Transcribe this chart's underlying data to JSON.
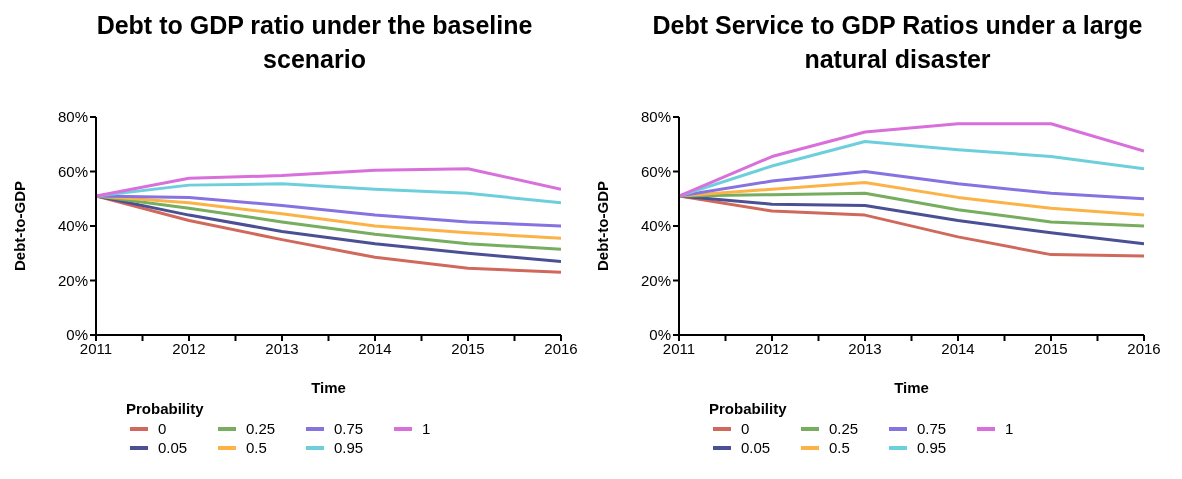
{
  "chart_data": [
    {
      "type": "line",
      "title": "Debt to GDP ratio under the baseline scenario",
      "xlabel": "Time",
      "ylabel": "Debt-to-GDP",
      "legend_title": "Probability",
      "legend": "bottom",
      "grid": false,
      "line_style": "solid",
      "x": [
        2011,
        2012,
        2013,
        2014,
        2015,
        2016
      ],
      "xlim": [
        2011,
        2016
      ],
      "xticks": [
        2011,
        {
          "value": 2011.5,
          "label": null
        },
        2012,
        {
          "value": 2012.5,
          "label": null
        },
        2013,
        {
          "value": 2013.5,
          "label": null
        },
        2014,
        {
          "value": 2014.5,
          "label": null
        },
        2015,
        {
          "value": 2015.5,
          "label": null
        },
        2016
      ],
      "ylim": [
        0,
        80
      ],
      "yticks": [
        {
          "value": 0,
          "label": "0%"
        },
        {
          "value": 20,
          "label": "20%"
        },
        {
          "value": 40,
          "label": "40%"
        },
        {
          "value": 60,
          "label": "60%"
        },
        {
          "value": 80,
          "label": "80%"
        }
      ],
      "series": [
        {
          "name": "0",
          "color": "#d0695c",
          "values": [
            51,
            42,
            35,
            28.5,
            24.5,
            23
          ]
        },
        {
          "name": "0.05",
          "color": "#4b4f93",
          "values": [
            51,
            44,
            38,
            33.5,
            30,
            27
          ]
        },
        {
          "name": "0.25",
          "color": "#76ad5e",
          "values": [
            51,
            46.5,
            41.5,
            37,
            33.5,
            31.5
          ]
        },
        {
          "name": "0.5",
          "color": "#fbb347",
          "values": [
            51,
            48.5,
            44.5,
            40,
            37.5,
            35.5
          ]
        },
        {
          "name": "0.75",
          "color": "#8672e0",
          "values": [
            51,
            50.5,
            47.5,
            44,
            41.5,
            40
          ]
        },
        {
          "name": "0.95",
          "color": "#6dcfdc",
          "values": [
            51,
            55,
            55.5,
            53.5,
            52,
            48.5
          ]
        },
        {
          "name": "1",
          "color": "#d96fdb",
          "values": [
            51,
            57.5,
            58.5,
            60.5,
            61,
            53.5
          ]
        }
      ]
    },
    {
      "type": "line",
      "title": "Debt Service to GDP Ratios under a large natural disaster",
      "xlabel": "Time",
      "ylabel": "Debt-to-GDP",
      "legend_title": "Probability",
      "legend": "bottom",
      "grid": false,
      "line_style": "solid",
      "x": [
        2011,
        2012,
        2013,
        2014,
        2015,
        2016
      ],
      "xlim": [
        2011,
        2016
      ],
      "xticks": [
        2011,
        {
          "value": 2011.5,
          "label": null
        },
        2012,
        {
          "value": 2012.5,
          "label": null
        },
        2013,
        {
          "value": 2013.5,
          "label": null
        },
        2014,
        {
          "value": 2014.5,
          "label": null
        },
        2015,
        {
          "value": 2015.5,
          "label": null
        },
        2016
      ],
      "ylim": [
        0,
        80
      ],
      "yticks": [
        {
          "value": 0,
          "label": "0%"
        },
        {
          "value": 20,
          "label": "20%"
        },
        {
          "value": 40,
          "label": "40%"
        },
        {
          "value": 60,
          "label": "60%"
        },
        {
          "value": 80,
          "label": "80%"
        }
      ],
      "series": [
        {
          "name": "0",
          "color": "#d0695c",
          "values": [
            51,
            45.5,
            44,
            36,
            29.5,
            29
          ]
        },
        {
          "name": "0.05",
          "color": "#4b4f93",
          "values": [
            51,
            48,
            47.5,
            42,
            37.5,
            33.5
          ]
        },
        {
          "name": "0.25",
          "color": "#76ad5e",
          "values": [
            51,
            51.5,
            52,
            46,
            41.5,
            40
          ]
        },
        {
          "name": "0.5",
          "color": "#fbb347",
          "values": [
            51,
            53.5,
            56,
            50.5,
            46.5,
            44
          ]
        },
        {
          "name": "0.75",
          "color": "#8672e0",
          "values": [
            51,
            56.5,
            60,
            55.5,
            52,
            50
          ]
        },
        {
          "name": "0.95",
          "color": "#6dcfdc",
          "values": [
            51,
            62,
            71,
            68,
            65.5,
            61
          ]
        },
        {
          "name": "1",
          "color": "#d96fdb",
          "values": [
            51,
            65.5,
            74.5,
            77.5,
            77.5,
            67.5
          ]
        }
      ]
    }
  ]
}
